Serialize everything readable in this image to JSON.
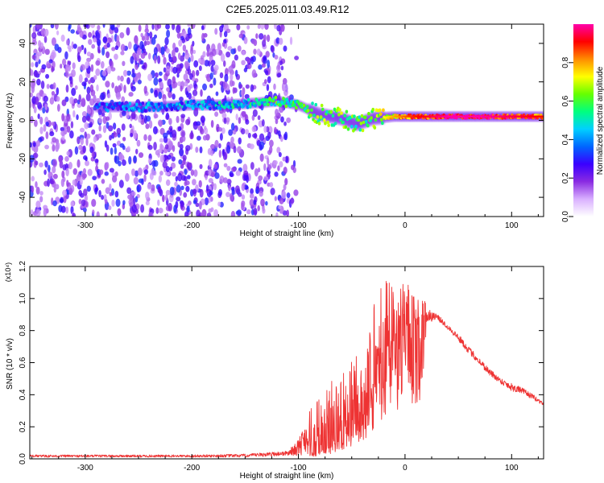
{
  "title": "C2E5.2025.011.03.49.R12",
  "chart_data": [
    {
      "type": "heatmap",
      "xlabel": "Height of straight line (km)",
      "ylabel": "Frequency (Hz)",
      "xlim": [
        -352,
        130
      ],
      "ylim": [
        -50,
        50
      ],
      "xticks": [
        -300,
        -200,
        -100,
        0,
        100
      ],
      "yticks": [
        -40,
        -20,
        0,
        20,
        40
      ],
      "colorbar": {
        "label": "Normalized spectral amplitude",
        "range": [
          0.0,
          1.0
        ],
        "ticks": [
          0.0,
          0.2,
          0.4,
          0.6,
          0.8
        ],
        "tick_labels": [
          "0.0",
          "0.2",
          "0.4",
          "0.6",
          "0.8"
        ],
        "colormap": [
          "#ffffff",
          "#d9b0ff",
          "#8a2be2",
          "#3a00ff",
          "#0066ff",
          "#00d0ff",
          "#00ff7f",
          "#66ff00",
          "#ffff00",
          "#ff8c00",
          "#ff0000",
          "#ff00aa"
        ]
      },
      "ridge": [
        {
          "x": -290,
          "freq": 7,
          "amp": 0.3
        },
        {
          "x": -260,
          "freq": 7,
          "amp": 0.35
        },
        {
          "x": -230,
          "freq": 7,
          "amp": 0.35
        },
        {
          "x": -200,
          "freq": 8,
          "amp": 0.4
        },
        {
          "x": -170,
          "freq": 8,
          "amp": 0.45
        },
        {
          "x": -140,
          "freq": 9,
          "amp": 0.5
        },
        {
          "x": -120,
          "freq": 10,
          "amp": 0.55
        },
        {
          "x": -100,
          "freq": 8,
          "amp": 0.55
        },
        {
          "x": -80,
          "freq": 3,
          "amp": 0.6
        },
        {
          "x": -60,
          "freq": 1,
          "amp": 0.6
        },
        {
          "x": -45,
          "freq": -2,
          "amp": 0.55
        },
        {
          "x": -30,
          "freq": 1,
          "amp": 0.6
        },
        {
          "x": -10,
          "freq": 2,
          "amp": 0.75
        },
        {
          "x": 10,
          "freq": 2,
          "amp": 0.85
        },
        {
          "x": 40,
          "freq": 2,
          "amp": 0.95
        },
        {
          "x": 70,
          "freq": 2,
          "amp": 0.95
        },
        {
          "x": 100,
          "freq": 2,
          "amp": 0.9
        },
        {
          "x": 128,
          "freq": 2,
          "amp": 0.85
        }
      ],
      "noise_region": {
        "xmin": -352,
        "xmax": -115,
        "xfade_end": -100
      }
    },
    {
      "type": "line",
      "xlabel": "Height of straight line (km)",
      "ylabel": "SNR (10 * v/v)",
      "y_multiplier": "(x10⁴)",
      "xlim": [
        -352,
        130
      ],
      "ylim": [
        0.0,
        1.2
      ],
      "xticks": [
        -300,
        -200,
        -100,
        0,
        100
      ],
      "yticks": [
        0.0,
        0.2,
        0.4,
        0.6,
        0.8,
        1.0,
        1.2
      ],
      "ytick_labels": [
        "0.0",
        "0.2",
        "0.4",
        "0.6",
        "0.8",
        "1.0",
        "1.2"
      ],
      "color": "#ee3333",
      "envelope": {
        "x": [
          -352,
          -300,
          -200,
          -150,
          -110,
          -100,
          -90,
          -80,
          -70,
          -60,
          -50,
          -40,
          -30,
          -20,
          -10,
          0,
          10,
          20,
          30,
          40,
          50,
          60,
          70,
          80,
          90,
          100,
          110,
          120,
          130
        ],
        "base": [
          0.01,
          0.01,
          0.01,
          0.01,
          0.02,
          0.02,
          0.03,
          0.05,
          0.08,
          0.12,
          0.18,
          0.25,
          0.4,
          0.65,
          0.75,
          0.82,
          0.85,
          0.88,
          0.88,
          0.82,
          0.75,
          0.67,
          0.6,
          0.53,
          0.48,
          0.44,
          0.42,
          0.38,
          0.34
        ],
        "peak": [
          0.025,
          0.025,
          0.025,
          0.03,
          0.05,
          0.12,
          0.3,
          0.4,
          0.5,
          0.55,
          0.62,
          0.7,
          0.95,
          1.15,
          1.05,
          1.12,
          1.0,
          0.98,
          0.92,
          0.86,
          0.8,
          0.72,
          0.65,
          0.58,
          0.52,
          0.5,
          0.46,
          0.42,
          0.36
        ]
      }
    }
  ]
}
